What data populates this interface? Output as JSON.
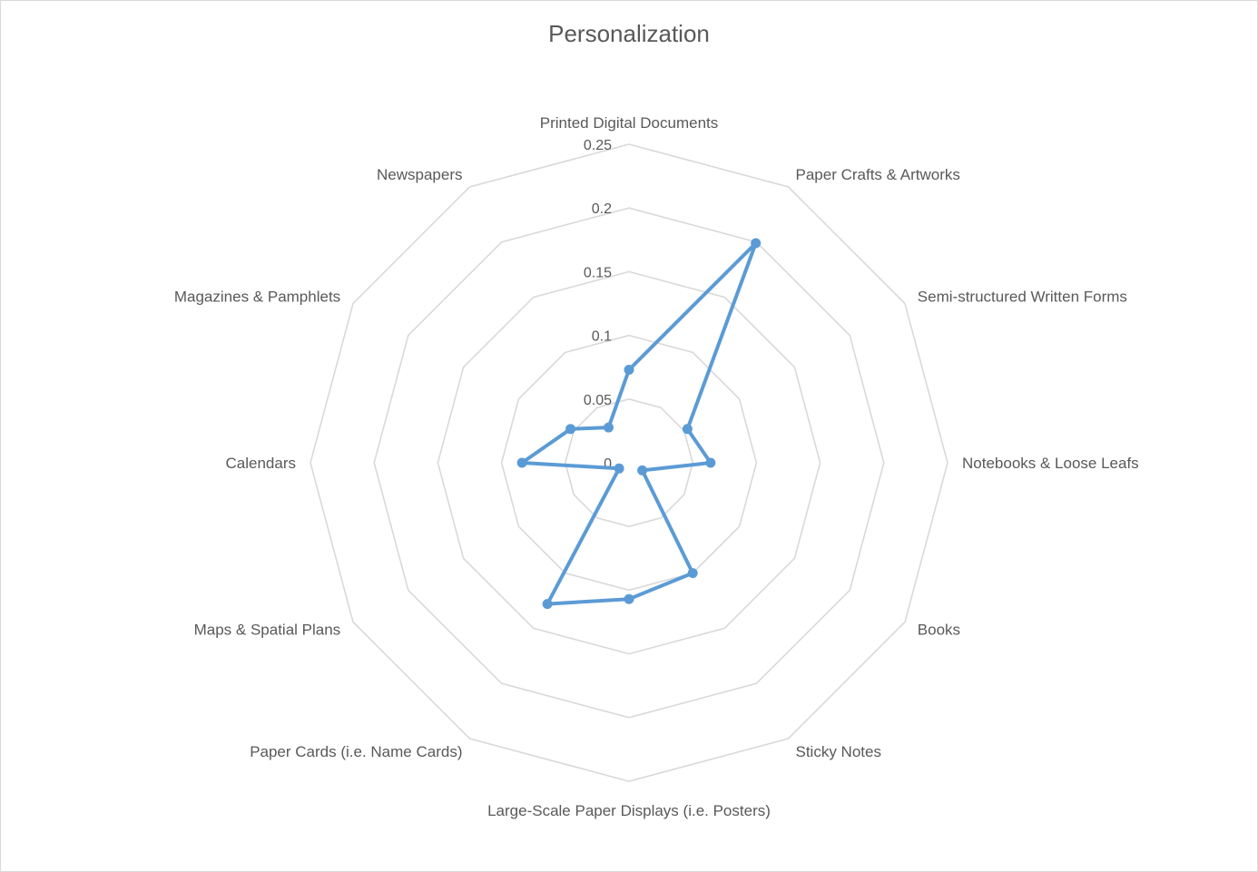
{
  "chart_data": {
    "type": "radar",
    "title": "Personalization",
    "categories": [
      "Printed Digital Documents",
      "Paper Crafts & Artworks",
      "Semi-structured Written Forms",
      "Notebooks & Loose Leafs",
      "Books",
      "Sticky Notes",
      "Large-Scale Paper Displays (i.e. Posters)",
      "Paper Cards (i.e. Name Cards)",
      "Maps & Spatial Plans",
      "Calendars",
      "Magazines & Pamphlets",
      "Newspapers"
    ],
    "series": [
      {
        "values": [
          0.073,
          0.199,
          0.053,
          0.064,
          0.012,
          0.1,
          0.107,
          0.128,
          0.009,
          0.084,
          0.053,
          0.032
        ],
        "color": "#5b9bd5"
      }
    ],
    "ticks": [
      "0",
      "0.05",
      "0.1",
      "0.15",
      "0.2",
      "0.25"
    ],
    "rmin": 0,
    "rmax": 0.25,
    "grid": true,
    "legend": "none"
  }
}
